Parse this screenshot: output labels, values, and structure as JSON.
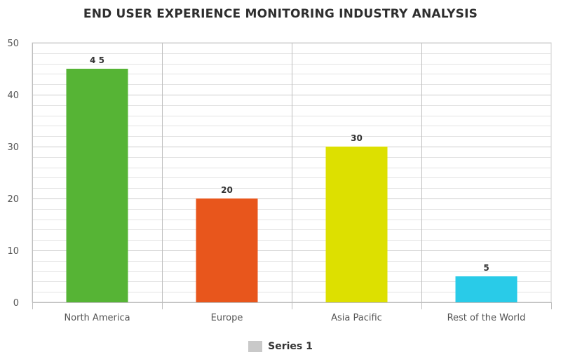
{
  "chart_data": {
    "type": "bar",
    "title": "END USER EXPERIENCE MONITORING INDUSTRY ANALYSIS",
    "xlabel": "",
    "ylabel": "",
    "categories": [
      "North America",
      "Europe",
      "Asia Pacific",
      "Rest of the World"
    ],
    "series": [
      {
        "name": "Series 1",
        "values": [
          45,
          20,
          30,
          5
        ],
        "colors": [
          "#56b435",
          "#e8561c",
          "#dde000",
          "#29cbe8"
        ],
        "data_labels": [
          "4 5",
          "20",
          "30",
          "5"
        ]
      }
    ],
    "ylim": [
      0,
      50
    ],
    "yticks": [
      0,
      10,
      20,
      30,
      40,
      50
    ],
    "grid": true,
    "legend_position": "bottom",
    "legend_color": "#c9c9c9"
  }
}
